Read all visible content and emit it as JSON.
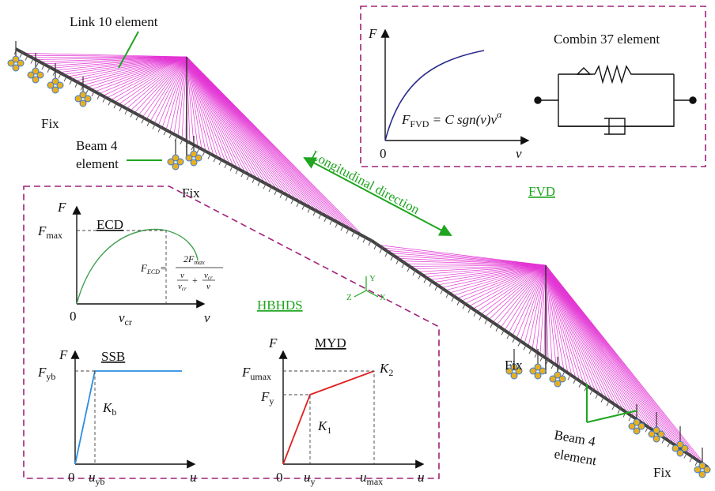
{
  "labels": {
    "link10": "Link 10 element",
    "fix_left_1": "Fix",
    "beam4_left": [
      "Beam 4",
      "element"
    ],
    "fix_left_2": "Fix",
    "longitudinal": "Longitudinal direction",
    "fvd": "FVD",
    "hbhds": "HBHDS",
    "fix_right_1": "Fix",
    "beam4_right": [
      "Beam 4",
      "element"
    ],
    "fix_right_2": "Fix",
    "axes": {
      "y": "Y",
      "z": "Z",
      "x": "X"
    }
  },
  "fvd_panel": {
    "y_axis": "F",
    "x_axis": "v",
    "origin": "0",
    "formula": {
      "lhs": "F",
      "lhs_sub": "FVD",
      "rhs": " = C sgn(v)v",
      "exp": "α"
    },
    "combin": "Combin 37 element"
  },
  "ecd_panel": {
    "title": "ECD",
    "y_axis": "F",
    "x_axis": "v",
    "origin": "0",
    "fmax": {
      "main": "F",
      "sub": "max"
    },
    "vcr": {
      "main": "v",
      "sub": "cr"
    },
    "formula": {
      "lhs": "F",
      "lhs_sub": "ECD",
      "eq": "=",
      "num": "2F",
      "num_sub": "max",
      "t1_num": "v",
      "t1_den": "v",
      "t1_den_sub": "cr",
      "plus": "+",
      "t2_num": "v",
      "t2_num_sub": "cr",
      "t2_den": "v"
    }
  },
  "ssb_panel": {
    "title": "SSB",
    "y_axis": "F",
    "x_axis": "u",
    "origin": "0",
    "fyb": {
      "main": "F",
      "sub": "yb"
    },
    "kb": {
      "main": "K",
      "sub": "b"
    },
    "uyb": {
      "main": "u",
      "sub": "yb"
    }
  },
  "myd_panel": {
    "title": "MYD",
    "y_axis": "F",
    "x_axis": "u",
    "origin": "0",
    "fumax": {
      "main": "F",
      "sub": "umax"
    },
    "fy": {
      "main": "F",
      "sub": "y"
    },
    "k2": {
      "main": "K",
      "sub": "2"
    },
    "k1": {
      "main": "K",
      "sub": "1"
    },
    "uy": {
      "main": "u",
      "sub": "y"
    },
    "umax": {
      "main": "u",
      "sub": "max"
    }
  }
}
